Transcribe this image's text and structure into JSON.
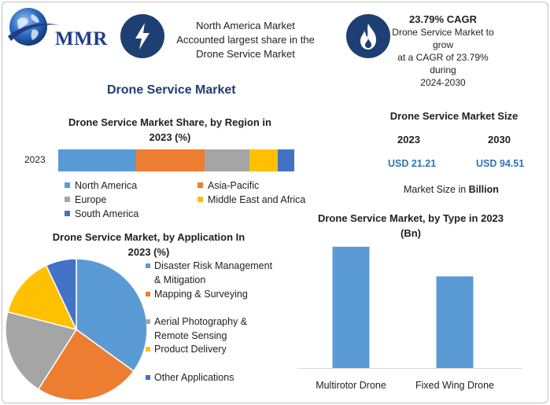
{
  "brand": {
    "logo_text": "MMR"
  },
  "highlights": [
    {
      "icon": "lightning-icon",
      "lines": [
        "North America Market",
        "Accounted largest share in the",
        "Drone Service Market"
      ]
    },
    {
      "icon": "flame-icon",
      "strong": "23.79% CAGR",
      "lines": [
        "Drone Service Market to grow",
        "at a CAGR of 23.79% during",
        "2024-2030"
      ]
    }
  ],
  "main_title": "Drone Service Market",
  "colors": {
    "blue": "#5b9bd5",
    "orange": "#ed7d31",
    "gray": "#a5a5a5",
    "yellow": "#ffc000",
    "dark_blue": "#4472c4",
    "value_blue": "#2e75b6",
    "badge": "#1e3f73"
  },
  "region_share": {
    "title_lines": [
      "Drone Service Market Share, by Region in",
      "2023 (%)"
    ],
    "year_label": "2023",
    "legend": [
      {
        "label": "North America",
        "color": "#5b9bd5"
      },
      {
        "label": "Asia-Pacific",
        "color": "#ed7d31"
      },
      {
        "label": "Europe",
        "color": "#a5a5a5"
      },
      {
        "label": "Middle East and Africa",
        "color": "#ffc000"
      },
      {
        "label": "South America",
        "color": "#4472c4"
      }
    ]
  },
  "market_size": {
    "title": "Drone Service Market Size",
    "year_a": "2023",
    "year_b": "2030",
    "value_a": "USD 21.21",
    "value_b": "USD 94.51",
    "note_prefix": "Market Size in ",
    "note_unit": "Billion"
  },
  "application": {
    "title_lines": [
      "Drone Service Market, by Application In",
      "2023 (%)"
    ],
    "legend": [
      {
        "lines": [
          "Disaster Risk Management",
          "& Mitigation"
        ],
        "color": "#5b9bd5"
      },
      {
        "lines": [
          "Mapping & Surveying"
        ],
        "color": "#ed7d31"
      },
      {
        "lines": [
          "Aerial Photography &",
          "Remote Sensing"
        ],
        "color": "#a5a5a5"
      },
      {
        "lines": [
          "Product Delivery"
        ],
        "color": "#ffc000"
      },
      {
        "lines": [
          "Other Applications"
        ],
        "color": "#4472c4"
      }
    ]
  },
  "type_chart": {
    "title_lines": [
      "Drone Service Market, by Type in 2023",
      "(Bn)"
    ]
  },
  "chart_data": [
    {
      "type": "bar",
      "orientation": "horizontal-stacked",
      "title": "Drone Service Market Share, by Region in 2023 (%)",
      "categories": [
        "2023"
      ],
      "series": [
        {
          "name": "North America",
          "values": [
            33
          ]
        },
        {
          "name": "Asia-Pacific",
          "values": [
            29
          ]
        },
        {
          "name": "Europe",
          "values": [
            19
          ]
        },
        {
          "name": "Middle East and Africa",
          "values": [
            12
          ]
        },
        {
          "name": "South America",
          "values": [
            7
          ]
        }
      ],
      "xlim": [
        0,
        100
      ],
      "legend": "bottom",
      "grid": false
    },
    {
      "type": "pie",
      "title": "Drone Service Market, by Application In 2023 (%)",
      "labels": [
        "Disaster Risk Management & Mitigation",
        "Mapping & Surveying",
        "Aerial Photography & Remote Sensing",
        "Product Delivery",
        "Other Applications"
      ],
      "values": [
        35,
        24,
        20,
        14,
        7
      ],
      "legend": "right"
    },
    {
      "type": "bar",
      "title": "Drone Service Market, by Type in 2023 (Bn)",
      "categories": [
        "Multirotor Drone",
        "Fixed Wing Drone"
      ],
      "values": [
        13.5,
        10.2
      ],
      "ylim": [
        0,
        14
      ],
      "grid": false
    }
  ]
}
